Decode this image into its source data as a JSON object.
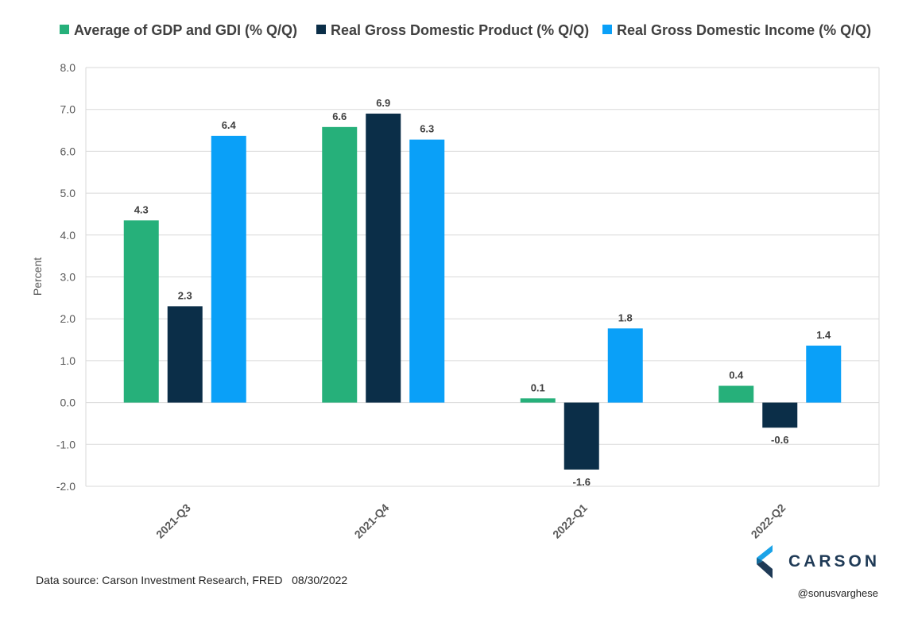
{
  "chart_data": {
    "type": "bar",
    "categories": [
      "2021-Q3",
      "2021-Q4",
      "2022-Q1",
      "2022-Q2"
    ],
    "series": [
      {
        "name": "Average of GDP and GDI (% Q/Q)",
        "color": "#26b07a",
        "values": [
          4.35,
          6.58,
          0.1,
          0.4
        ],
        "labels": [
          "4.3",
          "6.6",
          "0.1",
          "0.4"
        ]
      },
      {
        "name": "Real Gross Domestic Product (% Q/Q)",
        "color": "#0b2e48",
        "values": [
          2.3,
          6.9,
          -1.6,
          -0.6
        ],
        "labels": [
          "2.3",
          "6.9",
          "-1.6",
          "-0.6"
        ]
      },
      {
        "name": "Real Gross Domestic Income (% Q/Q)",
        "color": "#0aa0f8",
        "values": [
          6.37,
          6.28,
          1.77,
          1.36
        ],
        "labels": [
          "6.4",
          "6.3",
          "1.8",
          "1.4"
        ]
      }
    ],
    "ylabel": "Percent",
    "xlabel": "",
    "ylim": [
      -2,
      8
    ],
    "yticks": [
      8,
      7,
      6,
      5,
      4,
      3,
      2,
      1,
      0,
      -1,
      -2
    ],
    "ytick_labels": [
      "8.0",
      "7.0",
      "6.0",
      "5.0",
      "4.0",
      "3.0",
      "2.0",
      "1.0",
      "0.0",
      "-1.0",
      "-2.0"
    ],
    "grid": true,
    "legend_position": "top"
  },
  "footer": {
    "source": "Data source: Carson Investment Research, FRED   08/30/2022",
    "handle": "@sonusvarghese"
  },
  "brand": {
    "name": "CARSON",
    "logo_icon": "carson-chevron-icon"
  }
}
